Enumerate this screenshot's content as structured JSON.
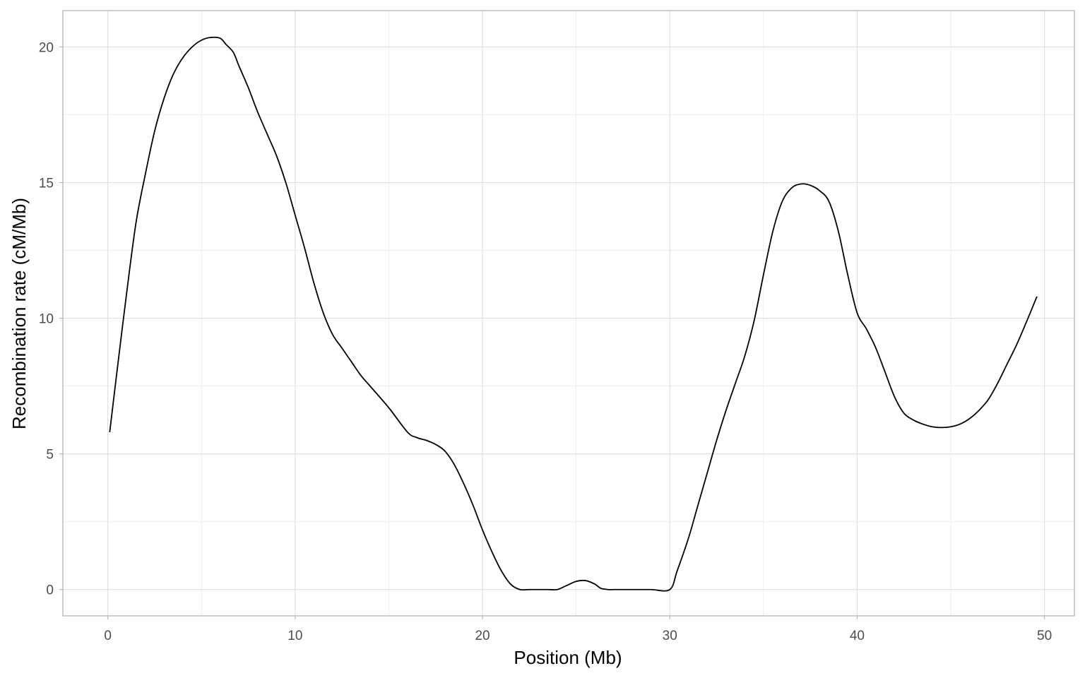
{
  "chart_data": {
    "type": "line",
    "title": "",
    "xlabel": "Position (Mb)",
    "ylabel": "Recombination rate (cM/Mb)",
    "xlim": [
      -2.4,
      51.6
    ],
    "ylim": [
      -0.97,
      21.34
    ],
    "x_ticks": [
      0,
      10,
      20,
      30,
      40,
      50
    ],
    "y_ticks": [
      0,
      5,
      10,
      15,
      20
    ],
    "x_tick_labels": [
      "0",
      "10",
      "20",
      "30",
      "40",
      "50"
    ],
    "y_tick_labels": [
      "0",
      "5",
      "10",
      "15",
      "20"
    ],
    "grid": true,
    "legend": "none",
    "series": [
      {
        "color": "#000000",
        "x": [
          0.1,
          0.5,
          1.0,
          1.5,
          2.0,
          2.5,
          3.0,
          3.5,
          4.0,
          4.5,
          5.0,
          5.5,
          6.0,
          6.3,
          6.7,
          7.0,
          7.5,
          8.0,
          8.5,
          9.0,
          9.5,
          10.0,
          10.5,
          11.0,
          11.5,
          12.0,
          12.5,
          13.0,
          13.5,
          14.0,
          15.0,
          16.0,
          16.5,
          17.0,
          17.5,
          18.0,
          18.5,
          19.0,
          19.5,
          20.0,
          20.5,
          21.0,
          21.5,
          22.0,
          22.5,
          23.0,
          23.5,
          24.0,
          24.5,
          25.0,
          25.5,
          26.0,
          26.3,
          26.7,
          27.0,
          28.0,
          29.0,
          30.0,
          30.4,
          31.0,
          31.5,
          32.0,
          32.5,
          33.0,
          33.5,
          34.0,
          34.5,
          35.0,
          35.5,
          36.0,
          36.5,
          37.0,
          37.5,
          38.0,
          38.5,
          39.0,
          39.5,
          40.0,
          40.5,
          41.0,
          41.5,
          42.0,
          42.5,
          43.0,
          43.5,
          44.0,
          44.5,
          45.0,
          45.5,
          46.0,
          46.5,
          47.0,
          47.5,
          48.0,
          48.5,
          49.0,
          49.6
        ],
        "y": [
          5.8,
          8.1,
          10.9,
          13.5,
          15.3,
          16.9,
          18.1,
          19.0,
          19.6,
          20.0,
          20.25,
          20.35,
          20.32,
          20.1,
          19.8,
          19.3,
          18.5,
          17.6,
          16.8,
          16.0,
          15.0,
          13.8,
          12.6,
          11.3,
          10.2,
          9.4,
          8.9,
          8.4,
          7.9,
          7.5,
          6.7,
          5.8,
          5.6,
          5.5,
          5.35,
          5.1,
          4.6,
          3.9,
          3.1,
          2.2,
          1.4,
          0.7,
          0.2,
          0.0,
          0.0,
          0.0,
          0.0,
          0.0,
          0.15,
          0.3,
          0.33,
          0.2,
          0.05,
          0.0,
          0.0,
          0.0,
          0.0,
          0.0,
          0.7,
          1.9,
          3.1,
          4.3,
          5.5,
          6.6,
          7.6,
          8.6,
          9.9,
          11.6,
          13.2,
          14.3,
          14.8,
          14.95,
          14.9,
          14.7,
          14.3,
          13.2,
          11.6,
          10.2,
          9.6,
          8.9,
          8.0,
          7.1,
          6.5,
          6.25,
          6.1,
          6.0,
          5.97,
          6.0,
          6.1,
          6.3,
          6.6,
          7.0,
          7.6,
          8.3,
          9.0,
          9.8,
          10.8
        ]
      }
    ]
  }
}
